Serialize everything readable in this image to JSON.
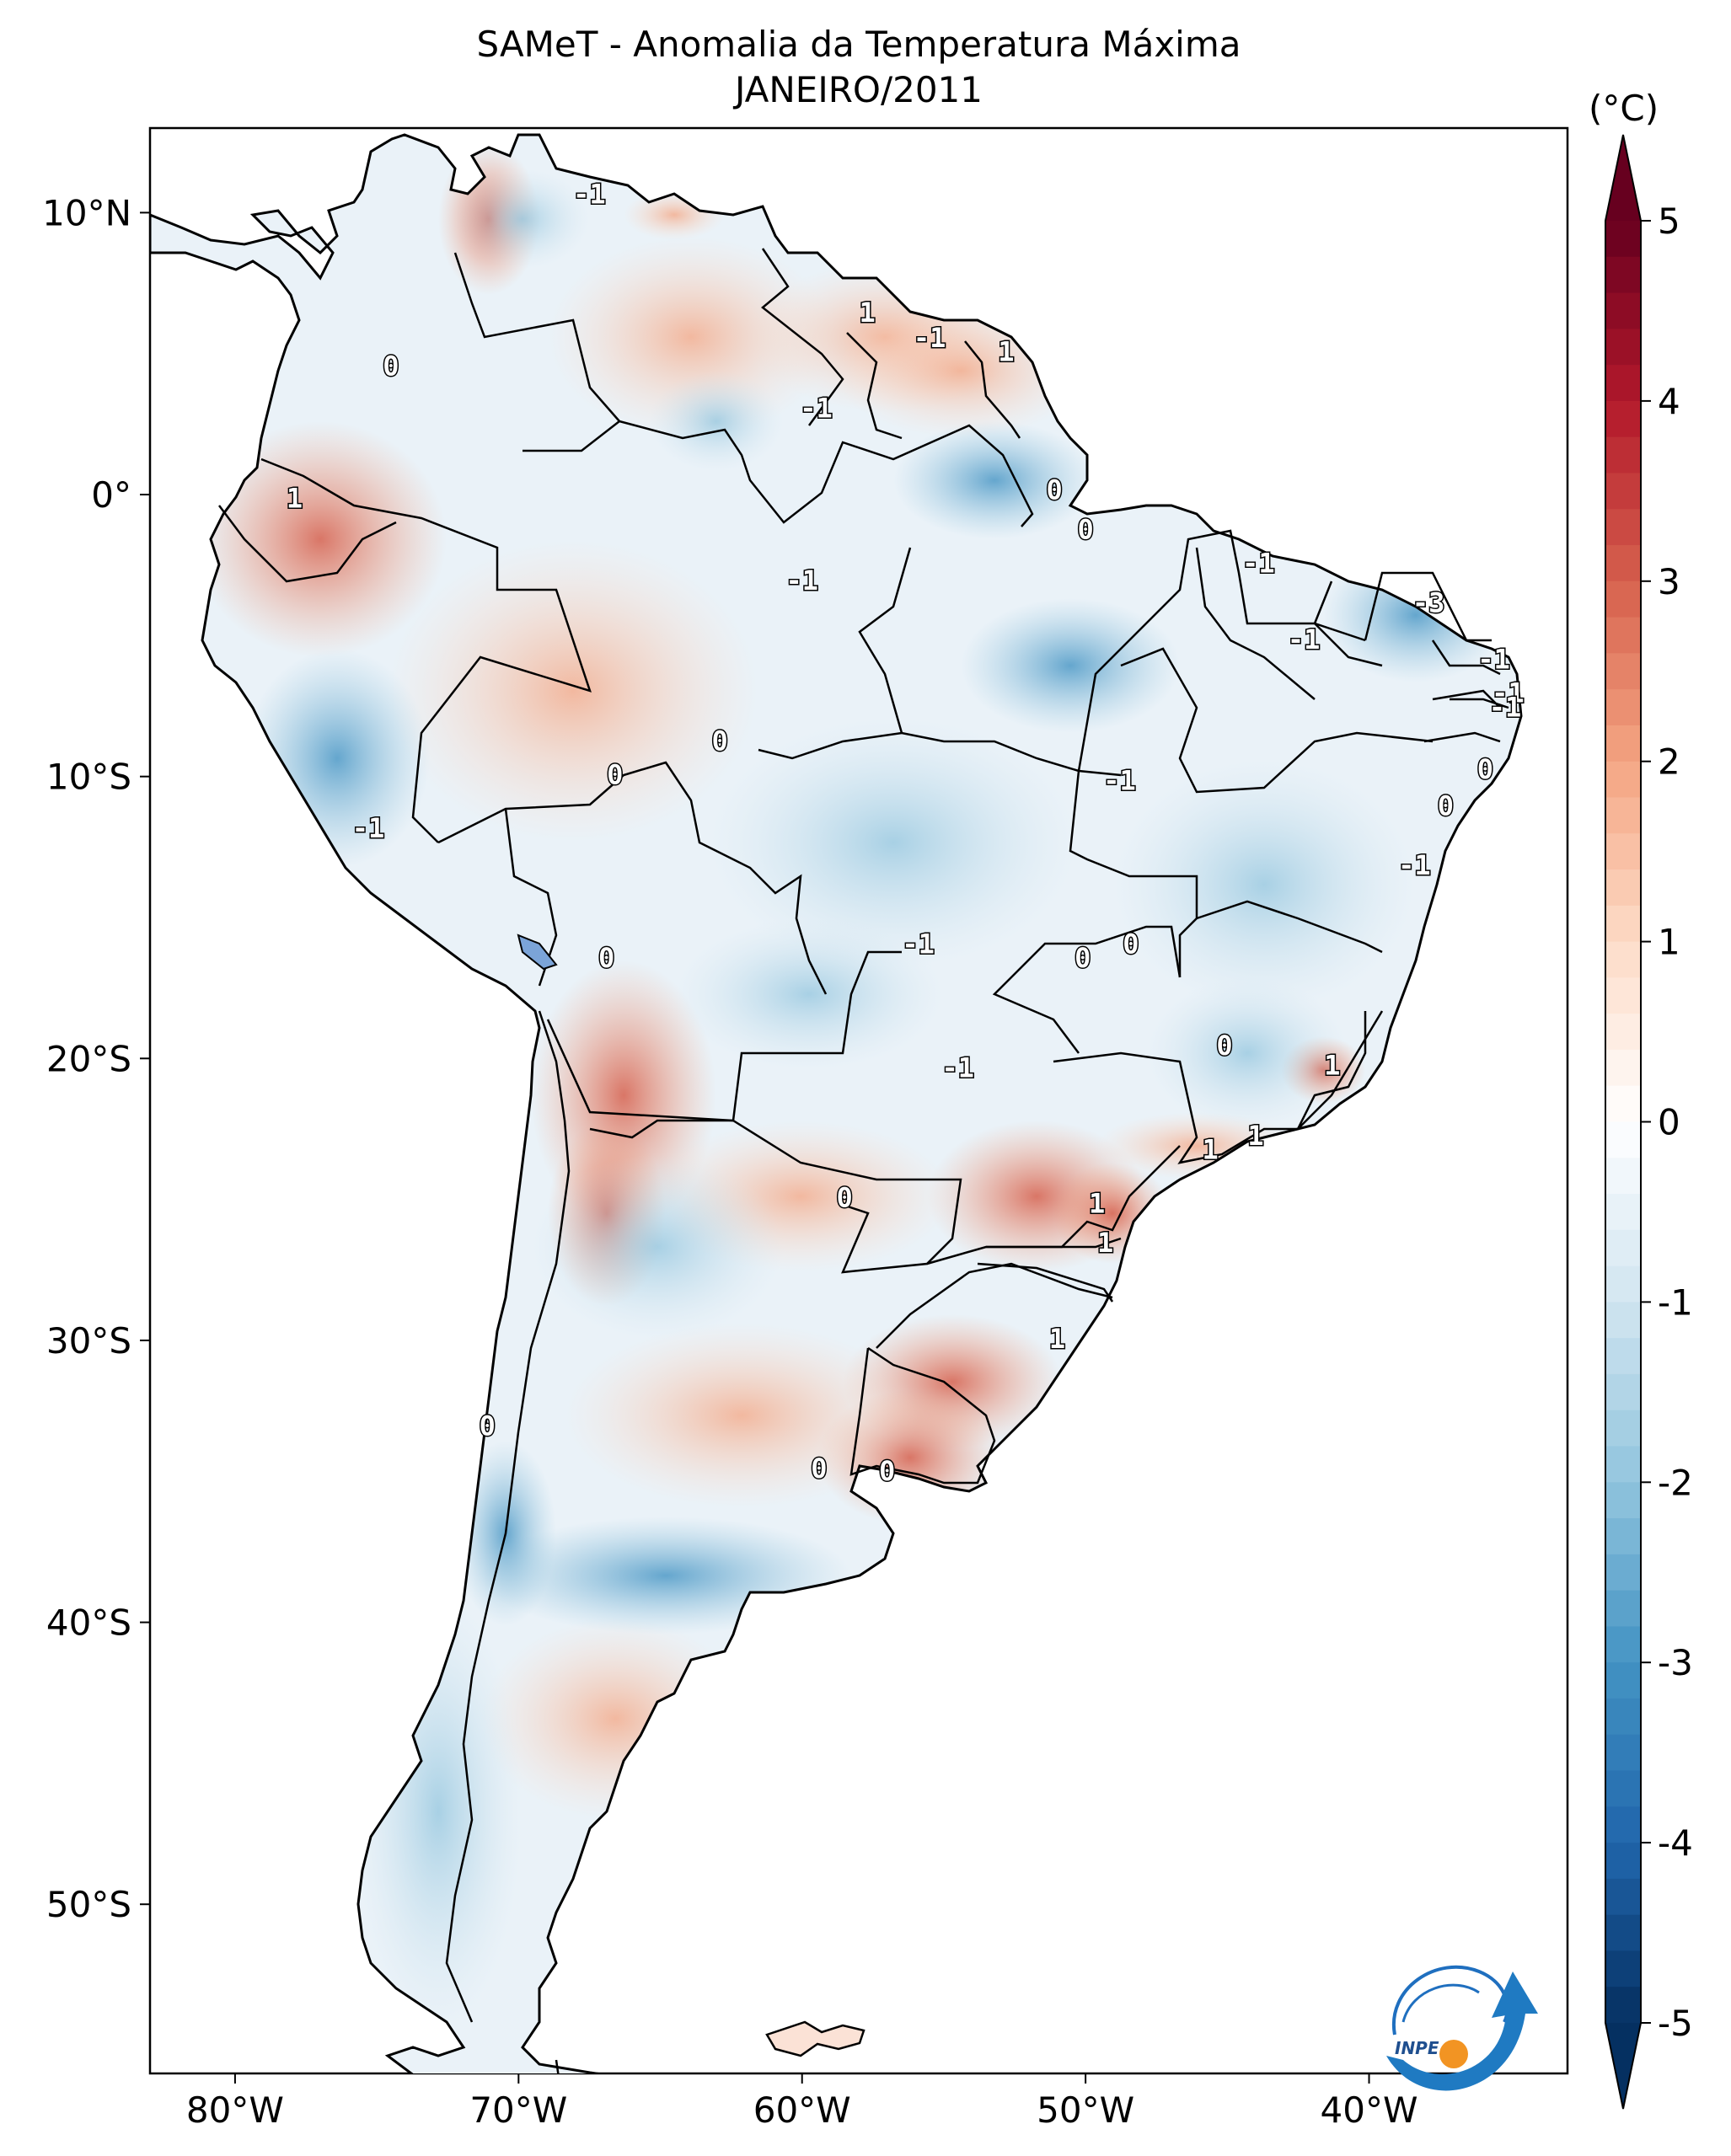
{
  "title": "SAMeT - Anomalia da Temperatura Máxima",
  "subtitle": "JANEIRO/2011",
  "colorbar": {
    "unit": "(°C)",
    "min": -5,
    "max": 5,
    "ticks": [
      "5",
      "4",
      "3",
      "2",
      "1",
      "0",
      "-1",
      "-2",
      "-3",
      "-4",
      "-5"
    ],
    "colors": [
      "#67001f",
      "#b2182b",
      "#d6604d",
      "#f4a582",
      "#fddbc7",
      "#ffffff",
      "#d1e5f0",
      "#92c5de",
      "#4393c3",
      "#2166ac",
      "#053061"
    ]
  },
  "axes": {
    "lon_ticks": [
      "80°W",
      "70°W",
      "60°W",
      "50°W",
      "40°W"
    ],
    "lat_ticks": [
      "10°N",
      "0°",
      "10°S",
      "20°S",
      "30°S",
      "40°S",
      "50°S"
    ],
    "lon_range": [
      -83,
      -33
    ],
    "lat_range": [
      -56,
      13
    ]
  },
  "contour_labels": [
    {
      "t": "-1",
      "lon": -67.5,
      "lat": 10.6
    },
    {
      "t": "0",
      "lon": -74.5,
      "lat": 4.5
    },
    {
      "t": "1",
      "lon": -77.9,
      "lat": -0.2
    },
    {
      "t": "1",
      "lon": -57.7,
      "lat": 6.4
    },
    {
      "t": "-1",
      "lon": -55.5,
      "lat": 5.5
    },
    {
      "t": "1",
      "lon": -52.8,
      "lat": 5.0
    },
    {
      "t": "-1",
      "lon": -59.5,
      "lat": 3.0
    },
    {
      "t": "0",
      "lon": -51.1,
      "lat": 0.1
    },
    {
      "t": "0",
      "lon": -50.0,
      "lat": -1.3
    },
    {
      "t": "-1",
      "lon": -43.9,
      "lat": -2.5
    },
    {
      "t": "-1",
      "lon": -42.3,
      "lat": -5.2
    },
    {
      "t": "-3",
      "lon": -37.9,
      "lat": -3.9
    },
    {
      "t": "-1",
      "lon": -35.6,
      "lat": -5.9
    },
    {
      "t": "-1",
      "lon": -35.1,
      "lat": -7.1
    },
    {
      "t": "-1",
      "lon": -35.2,
      "lat": -7.6
    },
    {
      "t": "0",
      "lon": -35.9,
      "lat": -9.8
    },
    {
      "t": "0",
      "lon": -37.3,
      "lat": -11.1
    },
    {
      "t": "-1",
      "lon": -38.4,
      "lat": -13.2
    },
    {
      "t": "-1",
      "lon": -60.0,
      "lat": -3.1
    },
    {
      "t": "0",
      "lon": -66.6,
      "lat": -10.0
    },
    {
      "t": "0",
      "lon": -62.9,
      "lat": -8.8
    },
    {
      "t": "-1",
      "lon": -48.8,
      "lat": -10.2
    },
    {
      "t": "-1",
      "lon": -75.3,
      "lat": -11.9
    },
    {
      "t": "0",
      "lon": -66.9,
      "lat": -16.5
    },
    {
      "t": "-1",
      "lon": -55.9,
      "lat": -16.0
    },
    {
      "t": "0",
      "lon": -48.4,
      "lat": -16.0
    },
    {
      "t": "0",
      "lon": -50.1,
      "lat": -16.5
    },
    {
      "t": "0",
      "lon": -45.1,
      "lat": -19.6
    },
    {
      "t": "-1",
      "lon": -54.5,
      "lat": -20.4
    },
    {
      "t": "1",
      "lon": -41.3,
      "lat": -20.3
    },
    {
      "t": "1",
      "lon": -44.0,
      "lat": -22.8
    },
    {
      "t": "1",
      "lon": -45.6,
      "lat": -23.3
    },
    {
      "t": "0",
      "lon": -58.5,
      "lat": -25.0
    },
    {
      "t": "1",
      "lon": -49.6,
      "lat": -25.2
    },
    {
      "t": "1",
      "lon": -49.3,
      "lat": -26.6
    },
    {
      "t": "1",
      "lon": -51.0,
      "lat": -30.0
    },
    {
      "t": "0",
      "lon": -71.1,
      "lat": -33.1
    },
    {
      "t": "0",
      "lon": -59.4,
      "lat": -34.6
    },
    {
      "t": "0",
      "lon": -57.0,
      "lat": -34.7
    }
  ]
}
